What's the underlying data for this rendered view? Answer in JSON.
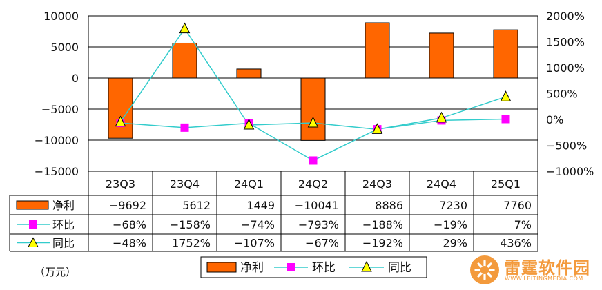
{
  "unit_label": "（万元）",
  "watermark": {
    "title": "雷霆软件园",
    "url": "WWW.LEITINGMEDIA.COM"
  },
  "legend": {
    "items": [
      "净利",
      "环比",
      "同比"
    ]
  },
  "colors": {
    "bar": "#ff6600",
    "qoq": "#ff00ff",
    "yoy_marker": "#ffff00",
    "line": "#33cccc",
    "watermark": "#f39a3c"
  },
  "chart_data": {
    "type": "bar",
    "categories": [
      "23Q3",
      "23Q4",
      "24Q1",
      "24Q2",
      "24Q3",
      "24Q4",
      "25Q1"
    ],
    "left_axis": {
      "ylim": [
        -15000,
        10000
      ],
      "ticks": [
        10000,
        5000,
        0,
        -5000,
        -10000,
        -15000
      ],
      "tick_labels": [
        "10000",
        "5000",
        "0",
        "-5000",
        "-10000",
        "-15000"
      ]
    },
    "right_axis": {
      "ylim": [
        -1000,
        2000
      ],
      "ticks": [
        2000,
        1500,
        1000,
        500,
        0,
        -500,
        -1000
      ],
      "tick_labels": [
        "2000%",
        "1500%",
        "1000%",
        "500%",
        "0%",
        "-500%",
        "-1000%"
      ]
    },
    "grid": true,
    "legend_position": "bottom",
    "series": [
      {
        "name": "净利",
        "kind": "bar",
        "axis": "left",
        "values": [
          -9692,
          5612,
          1449,
          -10041,
          8886,
          7230,
          7760
        ],
        "labels": [
          "-9692",
          "5612",
          "1449",
          "-10041",
          "8886",
          "7230",
          "7760"
        ]
      },
      {
        "name": "环比",
        "kind": "line",
        "axis": "right",
        "values": [
          -68,
          -158,
          -74,
          -793,
          -188,
          -19,
          7
        ],
        "labels": [
          "-68%",
          "-158%",
          "-74%",
          "-793%",
          "-188%",
          "-19%",
          "7%"
        ]
      },
      {
        "name": "同比",
        "kind": "line",
        "axis": "right",
        "values": [
          -48,
          1752,
          -107,
          -67,
          -192,
          29,
          436
        ],
        "labels": [
          "-48%",
          "1752%",
          "-107%",
          "-67%",
          "-192%",
          "29%",
          "436%"
        ]
      }
    ]
  }
}
